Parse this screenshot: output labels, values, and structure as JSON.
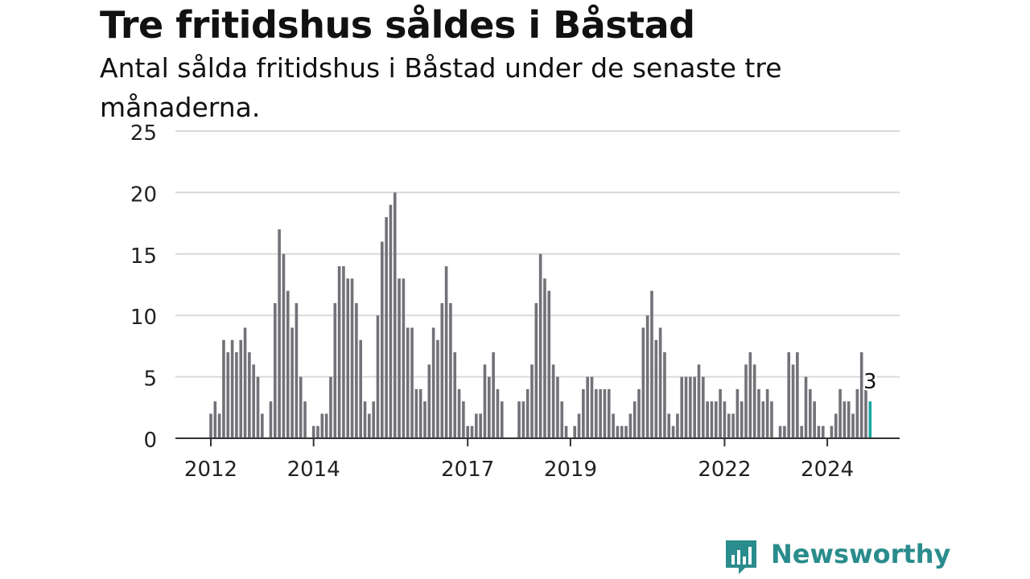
{
  "title": "Tre fritidshus såldes i Båstad",
  "subtitle": "Antal sålda fritidshus i Båstad under de senaste tre månaderna.",
  "logo_text": "Newsworthy",
  "colors": {
    "bar": "#737278",
    "highlight": "#1aa6a0",
    "grid": "#d9d9d9",
    "axis": "#333333",
    "brand": "#2a8c8c"
  },
  "chart_data": {
    "type": "bar",
    "title": "Tre fritidshus såldes i Båstad",
    "subtitle": "Antal sålda fritidshus i Båstad under de senaste tre månaderna.",
    "xlabel": "",
    "ylabel": "",
    "ylim": [
      0,
      25
    ],
    "yticks": [
      0,
      5,
      10,
      15,
      20,
      25
    ],
    "xticks": [
      "2012",
      "2014",
      "2017",
      "2019",
      "2022",
      "2024"
    ],
    "grid": true,
    "frequency": "monthly (rolling 3-month count)",
    "start": "2011-10",
    "end": "2024-12",
    "values": [
      0,
      0,
      0,
      2,
      3,
      2,
      8,
      7,
      8,
      7,
      8,
      9,
      7,
      6,
      5,
      2,
      0,
      3,
      11,
      17,
      15,
      12,
      9,
      11,
      5,
      3,
      0,
      1,
      1,
      2,
      2,
      5,
      11,
      14,
      14,
      13,
      13,
      11,
      8,
      3,
      2,
      3,
      10,
      16,
      18,
      19,
      20,
      13,
      13,
      9,
      9,
      4,
      4,
      3,
      6,
      9,
      8,
      11,
      14,
      11,
      7,
      4,
      3,
      1,
      1,
      2,
      2,
      6,
      5,
      7,
      4,
      3,
      0,
      0,
      0,
      3,
      3,
      4,
      6,
      11,
      15,
      13,
      12,
      6,
      5,
      3,
      1,
      0,
      1,
      2,
      4,
      5,
      5,
      4,
      4,
      4,
      4,
      2,
      1,
      1,
      1,
      2,
      3,
      4,
      9,
      10,
      12,
      8,
      9,
      7,
      2,
      1,
      2,
      5,
      5,
      5,
      5,
      6,
      5,
      3,
      3,
      3,
      4,
      3,
      2,
      2,
      4,
      3,
      6,
      7,
      6,
      4,
      3,
      4,
      3,
      0,
      1,
      1,
      7,
      6,
      7,
      1,
      5,
      4,
      3,
      1,
      1,
      0,
      1,
      2,
      4,
      3,
      3,
      2,
      4,
      7,
      4,
      3
    ],
    "highlight": {
      "index": 157,
      "value": 3,
      "label": "3"
    }
  }
}
